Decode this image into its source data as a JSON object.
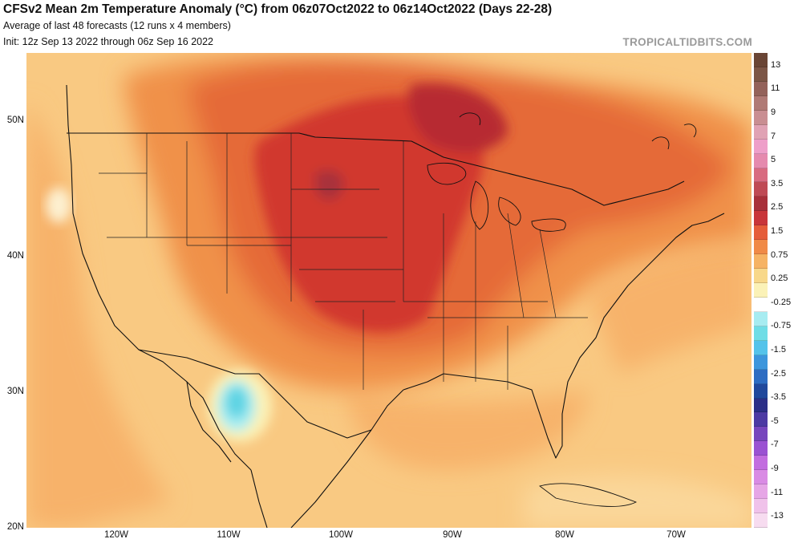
{
  "header": {
    "title": "CFSv2 Mean 2m Temperature Anomaly (°C) from 06z07Oct2022 to 06z14Oct2022 (Days 22-28)",
    "subtitle1": "Average of last 48 forecasts (12 runs x 4 members)",
    "subtitle2": "Init: 12z Sep 13 2022 through 06z Sep 16 2022",
    "brand": "TROPICALTIDBITS.COM"
  },
  "map": {
    "lon_range": [
      -128,
      -63
    ],
    "lat_range": [
      20,
      55
    ],
    "lat_ticks": [
      {
        "value": 50,
        "label": "50N"
      },
      {
        "value": 40,
        "label": "40N"
      },
      {
        "value": 30,
        "label": "30N"
      },
      {
        "value": 20,
        "label": "20N"
      }
    ],
    "lon_ticks": [
      {
        "value": -120,
        "label": "120W"
      },
      {
        "value": -110,
        "label": "110W"
      },
      {
        "value": -100,
        "label": "100W"
      },
      {
        "value": -90,
        "label": "90W"
      },
      {
        "value": -80,
        "label": "80W"
      },
      {
        "value": -70,
        "label": "70W"
      }
    ],
    "colors": {
      "background": "#f9c982",
      "ocean_warm": "#f7b26a",
      "anom_1_5": "#f09149",
      "anom_2_5": "#e56a38",
      "anom_3": "#d1382f",
      "anom_3_5": "#b72a33",
      "cool_light": "#aaeef2",
      "cool": "#5cd3e3",
      "border": "#111111"
    },
    "regions": [
      {
        "name": "northern-plains-hot-core",
        "anomaly": 3.5
      },
      {
        "name": "central-us-warm",
        "anomaly": 2.5
      },
      {
        "name": "northwest-mexico-cool",
        "anomaly": -0.75
      }
    ]
  },
  "colorbar": {
    "labels": [
      "13",
      "11",
      "9",
      "7",
      "5",
      "3.5",
      "2.5",
      "1.5",
      "0.75",
      "0.25",
      "-0.25",
      "-0.75",
      "-1.5",
      "-2.5",
      "-3.5",
      "-5",
      "-7",
      "-9",
      "-11",
      "-13"
    ],
    "colors": [
      "#6a4535",
      "#7c5646",
      "#94625a",
      "#b07a75",
      "#c98e92",
      "#e0a2b4",
      "#ee9fc9",
      "#e58aae",
      "#d86b80",
      "#bf4a55",
      "#a8303a",
      "#c8353a",
      "#e55d3a",
      "#f08a47",
      "#f6b364",
      "#f8d88a",
      "#fbf2b7",
      "#ffffff",
      "#a7ecf1",
      "#6fdde6",
      "#54c3ea",
      "#3c96dc",
      "#2d6cc2",
      "#20489c",
      "#2b2f87",
      "#4c3aa3",
      "#7746bd",
      "#9a52d2",
      "#c26ddf",
      "#d98be4",
      "#e6a6e6",
      "#f0c2ea",
      "#f7dcf0"
    ]
  }
}
